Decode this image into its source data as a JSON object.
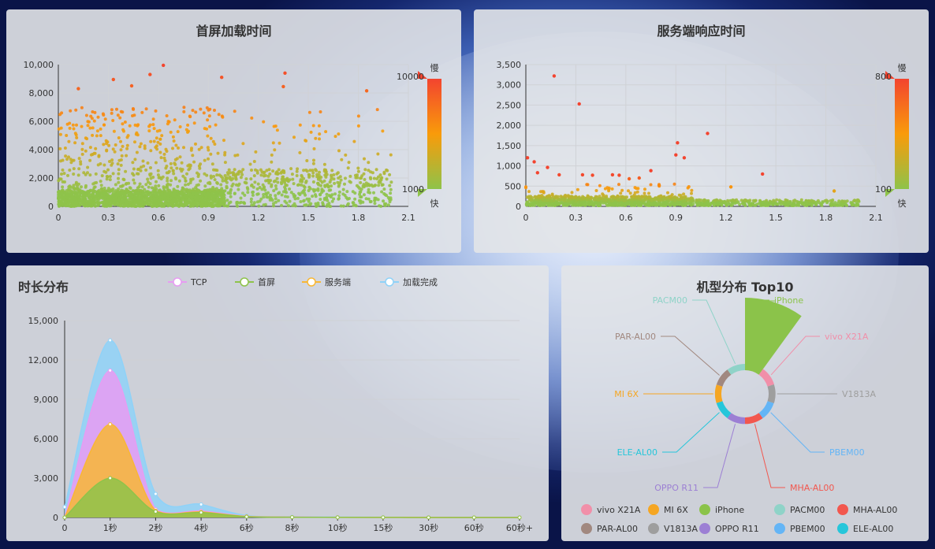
{
  "charts": {
    "first_screen": {
      "title": "首屏加载时间",
      "x_ticks": [
        "0",
        "0.3",
        "0.6",
        "0.9",
        "1.2",
        "1.5",
        "1.8",
        "2.1"
      ],
      "y_ticks": [
        "0",
        "2,000",
        "4,000",
        "6,000",
        "8,000",
        "10,000"
      ],
      "visual_map": {
        "max_label": "10000",
        "min_label": "1000",
        "slow": "慢",
        "fast": "快"
      }
    },
    "server_response": {
      "title": "服务端响应时间",
      "x_ticks": [
        "0",
        "0.3",
        "0.6",
        "0.9",
        "1.2",
        "1.5",
        "1.8",
        "2.1"
      ],
      "y_ticks": [
        "0",
        "500",
        "1,000",
        "1,500",
        "2,000",
        "2,500",
        "3,000",
        "3,500"
      ],
      "visual_map": {
        "max_label": "800",
        "min_label": "100",
        "slow": "慢",
        "fast": "快"
      }
    },
    "duration": {
      "title": "时长分布",
      "legend": [
        {
          "name": "TCP",
          "color": "#e79cf2"
        },
        {
          "name": "首屏",
          "color": "#8ec34a"
        },
        {
          "name": "服务端",
          "color": "#f8b735"
        },
        {
          "name": "加载完成",
          "color": "#8fd2f8"
        }
      ],
      "x_ticks": [
        "0",
        "1秒",
        "2秒",
        "4秒",
        "6秒",
        "8秒",
        "10秒",
        "15秒",
        "30秒",
        "60秒",
        "60秒+"
      ],
      "y_ticks": [
        "0",
        "3,000",
        "6,000",
        "9,000",
        "12,000",
        "15,000"
      ]
    },
    "models": {
      "title": "机型分布 Top10",
      "legend": [
        {
          "name": "vivo X21A",
          "color": "#f18fa9"
        },
        {
          "name": "MI 6X",
          "color": "#f5a623"
        },
        {
          "name": "iPhone",
          "color": "#8bc34a"
        },
        {
          "name": "PACM00",
          "color": "#8fd3c8"
        },
        {
          "name": "MHA-AL00",
          "color": "#f2574e"
        },
        {
          "name": "PAR-AL00",
          "color": "#a1887f"
        },
        {
          "name": "V1813A",
          "color": "#9e9e9e"
        },
        {
          "name": "OPPO R11",
          "color": "#9c7fd4"
        },
        {
          "name": "PBEM00",
          "color": "#64b5f6"
        },
        {
          "name": "ELE-AL00",
          "color": "#26c6da"
        }
      ]
    }
  },
  "chart_data": [
    {
      "type": "scatter",
      "title": "首屏加载时间",
      "xlim": [
        0,
        2.1
      ],
      "ylim": [
        0,
        10000
      ],
      "visual_map": {
        "min": 1000,
        "max": 10000,
        "colors": [
          "#8ec34a",
          "#f99b0a",
          "#f3442f"
        ]
      },
      "notable_points": [
        [
          0.63,
          9950
        ],
        [
          0.33,
          8950
        ],
        [
          0.55,
          9300
        ],
        [
          1.36,
          9400
        ],
        [
          0.98,
          9100
        ],
        [
          1.35,
          8450
        ],
        [
          1.85,
          8150
        ],
        [
          0.44,
          8500
        ],
        [
          0.12,
          8300
        ]
      ]
    },
    {
      "type": "scatter",
      "title": "服务端响应时间",
      "xlim": [
        0,
        2.1
      ],
      "ylim": [
        0,
        3500
      ],
      "visual_map": {
        "min": 100,
        "max": 800,
        "colors": [
          "#8ec34a",
          "#f99b0a",
          "#f3442f"
        ]
      },
      "notable_points": [
        [
          0.17,
          3220
        ],
        [
          0.32,
          2530
        ],
        [
          1.09,
          1800
        ],
        [
          0.91,
          1570
        ],
        [
          0.9,
          1270
        ],
        [
          0.95,
          1200
        ],
        [
          0.01,
          1200
        ],
        [
          0.05,
          1100
        ],
        [
          0.07,
          830
        ],
        [
          0.13,
          960
        ],
        [
          0.2,
          780
        ],
        [
          0.34,
          780
        ],
        [
          0.4,
          770
        ],
        [
          0.52,
          780
        ],
        [
          0.56,
          770
        ],
        [
          0.62,
          680
        ],
        [
          0.68,
          700
        ],
        [
          0.75,
          880
        ],
        [
          0.8,
          520
        ],
        [
          1.42,
          800
        ],
        [
          1.85,
          380
        ],
        [
          1.23,
          480
        ]
      ]
    },
    {
      "type": "area",
      "title": "时长分布",
      "categories": [
        "0",
        "1秒",
        "2秒",
        "4秒",
        "6秒",
        "8秒",
        "10秒",
        "15秒",
        "30秒",
        "60秒",
        "60秒+"
      ],
      "series": [
        {
          "name": "首屏",
          "values": [
            0,
            3000,
            450,
            380,
            60,
            20,
            10,
            5,
            3,
            2,
            1
          ]
        },
        {
          "name": "服务端",
          "values": [
            0,
            7100,
            520,
            430,
            80,
            25,
            12,
            6,
            3,
            2,
            1
          ]
        },
        {
          "name": "TCP",
          "values": [
            0,
            11200,
            620,
            500,
            100,
            30,
            15,
            8,
            4,
            2,
            1
          ]
        },
        {
          "name": "加载完成",
          "values": [
            800,
            13500,
            1800,
            1000,
            150,
            50,
            30,
            15,
            6,
            3,
            2
          ]
        }
      ],
      "ylim": [
        0,
        15000
      ]
    },
    {
      "type": "pie",
      "title": "机型分布 Top10",
      "rose": true,
      "slices": [
        {
          "name": "iPhone",
          "value": 100
        },
        {
          "name": "vivo X21A",
          "value": 18
        },
        {
          "name": "V1813A",
          "value": 16
        },
        {
          "name": "PBEM00",
          "value": 14
        },
        {
          "name": "MHA-AL00",
          "value": 13
        },
        {
          "name": "OPPO R11",
          "value": 13
        },
        {
          "name": "ELE-AL00",
          "value": 12
        },
        {
          "name": "MI 6X",
          "value": 12
        },
        {
          "name": "PAR-AL00",
          "value": 11
        },
        {
          "name": "PACM00",
          "value": 11
        }
      ]
    }
  ]
}
